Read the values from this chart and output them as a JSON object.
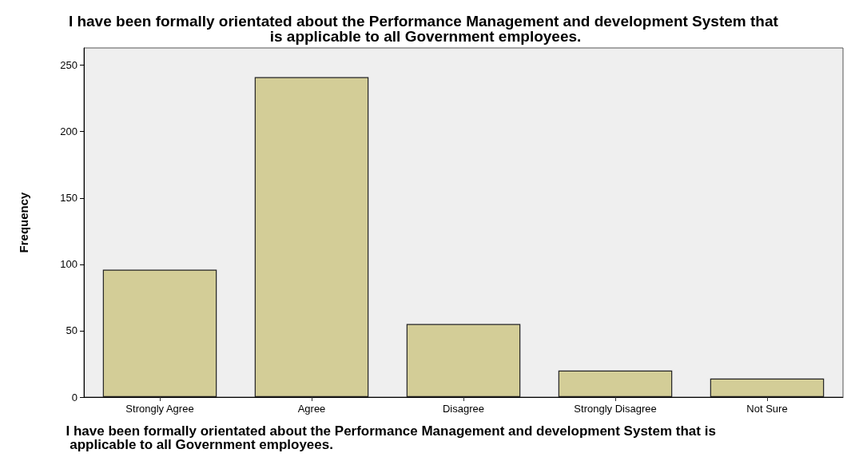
{
  "chart_data": {
    "type": "bar",
    "title": "I have been formally orientated about the Performance Management and development System that is applicable to all Government employees.",
    "xlabel": "I have been formally orientated about the Performance Management and development System that is applicable to all Government employees.",
    "ylabel": "Frequency",
    "categories": [
      "Strongly Agree",
      "Agree",
      "Disagree",
      "Strongly Disagree",
      "Not Sure"
    ],
    "values": [
      96,
      241,
      55,
      20,
      14
    ],
    "color": "#d3cd97",
    "ylim": [
      0,
      263
    ],
    "yticks": [
      0,
      50,
      100,
      150,
      200,
      250
    ],
    "grid": false
  }
}
